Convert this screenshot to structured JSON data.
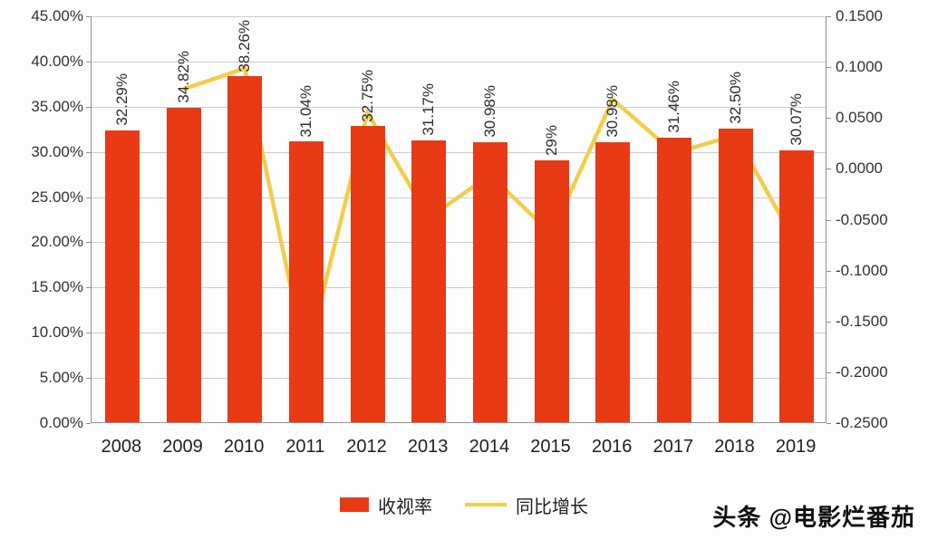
{
  "chart_data": {
    "type": "bar",
    "subtype": "combo-bar-line-dual-axis",
    "categories": [
      "2008",
      "2009",
      "2010",
      "2011",
      "2012",
      "2013",
      "2014",
      "2015",
      "2016",
      "2017",
      "2018",
      "2019"
    ],
    "series": [
      {
        "name": "收视率",
        "type": "bar",
        "axis": "left",
        "color": "#e83a15",
        "values": [
          32.29,
          34.82,
          38.26,
          31.04,
          32.75,
          31.17,
          30.98,
          29,
          30.98,
          31.46,
          32.5,
          30.07
        ],
        "data_labels": [
          "32.29%",
          "34.82%",
          "38.26%",
          "31.04%",
          "32.75%",
          "31.17%",
          "30.98%",
          "29%",
          "30.98%",
          "31.46%",
          "32.50%",
          "30.07%"
        ]
      },
      {
        "name": "同比增长",
        "type": "line",
        "axis": "right",
        "color": "#f2cd4a",
        "values": [
          null,
          0.0784,
          0.0988,
          -0.1887,
          0.0551,
          -0.0482,
          -0.0061,
          -0.0639,
          0.0683,
          0.0155,
          0.0331,
          -0.0748
        ]
      }
    ],
    "left_axis": {
      "min": 0,
      "max": 45,
      "tick_labels": [
        "45.00%",
        "40.00%",
        "35.00%",
        "30.00%",
        "25.00%",
        "20.00%",
        "15.00%",
        "10.00%",
        "5.00%",
        "0.00%"
      ]
    },
    "right_axis": {
      "min": -0.25,
      "max": 0.15,
      "tick_labels": [
        "0.1500",
        "0.1000",
        "0.0500",
        "0.0000",
        "-0.0500",
        "-0.1000",
        "-0.1500",
        "-0.2000",
        "-0.2500"
      ]
    },
    "grid": true,
    "legend": {
      "position": "bottom",
      "items": [
        {
          "label": "收视率",
          "swatch": "bar",
          "color": "#e83a15"
        },
        {
          "label": "同比增长",
          "swatch": "line",
          "color": "#f2cd4a"
        }
      ]
    }
  },
  "watermark": {
    "text": "头条 @电影烂番茄"
  }
}
